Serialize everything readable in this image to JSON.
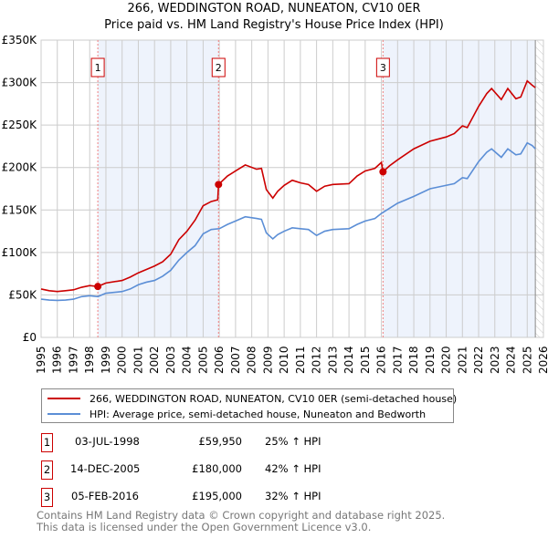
{
  "header": {
    "title": "266, WEDDINGTON ROAD, NUNEATON, CV10 0ER",
    "subtitle": "Price paid vs. HM Land Registry's House Price Index (HPI)"
  },
  "chart_data": {
    "type": "line",
    "title": "266, WEDDINGTON ROAD, NUNEATON, CV10 0ER",
    "subtitle": "Price paid vs. HM Land Registry's House Price Index (HPI)",
    "xlim": [
      1995,
      2026
    ],
    "ylim": [
      0,
      350000
    ],
    "xticks": [
      "1995",
      "1996",
      "1997",
      "1998",
      "1999",
      "2000",
      "2001",
      "2002",
      "2003",
      "2004",
      "2005",
      "2006",
      "2007",
      "2008",
      "2009",
      "2010",
      "2011",
      "2012",
      "2013",
      "2014",
      "2015",
      "2016",
      "2017",
      "2018",
      "2019",
      "2020",
      "2021",
      "2022",
      "2023",
      "2024",
      "2025",
      "2026"
    ],
    "yticks": [
      {
        "v": 0,
        "label": "£0"
      },
      {
        "v": 50000,
        "label": "£50K"
      },
      {
        "v": 100000,
        "label": "£100K"
      },
      {
        "v": 150000,
        "label": "£150K"
      },
      {
        "v": 200000,
        "label": "£200K"
      },
      {
        "v": 250000,
        "label": "£250K"
      },
      {
        "v": 300000,
        "label": "£300K"
      },
      {
        "v": 350000,
        "label": "£350K"
      }
    ],
    "grid": true,
    "colors": {
      "property": "#cc0000",
      "hpi": "#5b8ed6",
      "shade": "#eef3fc",
      "marker": "#cc0000"
    },
    "series": [
      {
        "name": "266, WEDDINGTON ROAD, NUNEATON, CV10 0ER (semi-detached house)",
        "points": [
          [
            1995,
            57000
          ],
          [
            1995.5,
            55000
          ],
          [
            1996,
            54000
          ],
          [
            1996.5,
            55000
          ],
          [
            1997,
            56000
          ],
          [
            1997.5,
            59000
          ],
          [
            1998,
            61000
          ],
          [
            1998.5,
            59950
          ],
          [
            1999,
            64000
          ],
          [
            2000,
            67000
          ],
          [
            2000.5,
            71000
          ],
          [
            2001,
            76000
          ],
          [
            2001.5,
            80000
          ],
          [
            2002,
            84000
          ],
          [
            2002.5,
            89000
          ],
          [
            2003,
            98000
          ],
          [
            2003.5,
            115000
          ],
          [
            2004,
            125000
          ],
          [
            2004.5,
            138000
          ],
          [
            2005,
            155000
          ],
          [
            2005.5,
            160000
          ],
          [
            2005.9,
            162000
          ],
          [
            2005.95,
            180000
          ],
          [
            2006.5,
            190000
          ],
          [
            2007,
            196000
          ],
          [
            2007.6,
            203000
          ],
          [
            2008.3,
            198000
          ],
          [
            2008.6,
            199000
          ],
          [
            2008.9,
            174000
          ],
          [
            2009.3,
            164000
          ],
          [
            2009.6,
            172000
          ],
          [
            2010,
            179000
          ],
          [
            2010.5,
            185000
          ],
          [
            2011,
            182000
          ],
          [
            2011.5,
            180000
          ],
          [
            2012,
            172000
          ],
          [
            2012.5,
            178000
          ],
          [
            2013,
            180000
          ],
          [
            2014,
            181000
          ],
          [
            2014.5,
            190000
          ],
          [
            2015,
            196000
          ],
          [
            2015.6,
            199000
          ],
          [
            2016,
            206000
          ],
          [
            2016.1,
            195000
          ],
          [
            2016.5,
            202000
          ],
          [
            2017,
            209000
          ],
          [
            2018,
            222000
          ],
          [
            2019,
            231000
          ],
          [
            2020,
            236000
          ],
          [
            2020.5,
            240000
          ],
          [
            2021,
            249000
          ],
          [
            2021.3,
            247000
          ],
          [
            2022,
            272000
          ],
          [
            2022.5,
            287000
          ],
          [
            2022.8,
            293000
          ],
          [
            2023.4,
            280000
          ],
          [
            2023.8,
            293000
          ],
          [
            2024.3,
            281000
          ],
          [
            2024.6,
            283000
          ],
          [
            2025,
            302000
          ],
          [
            2025.3,
            297000
          ],
          [
            2025.5,
            294000
          ]
        ]
      },
      {
        "name": "HPI: Average price, semi-detached house, Nuneaton and Bedworth",
        "points": [
          [
            1995,
            45000
          ],
          [
            1995.5,
            44000
          ],
          [
            1996,
            43500
          ],
          [
            1996.5,
            44000
          ],
          [
            1997,
            45000
          ],
          [
            1997.5,
            48000
          ],
          [
            1998,
            49000
          ],
          [
            1998.5,
            48000
          ],
          [
            1999,
            52000
          ],
          [
            2000,
            54000
          ],
          [
            2000.5,
            57000
          ],
          [
            2001,
            62000
          ],
          [
            2001.5,
            65000
          ],
          [
            2002,
            67000
          ],
          [
            2002.5,
            72000
          ],
          [
            2003,
            79000
          ],
          [
            2003.5,
            91000
          ],
          [
            2004,
            100000
          ],
          [
            2004.5,
            108000
          ],
          [
            2005,
            122000
          ],
          [
            2005.5,
            127000
          ],
          [
            2006,
            128000
          ],
          [
            2006.5,
            133000
          ],
          [
            2007,
            137000
          ],
          [
            2007.6,
            142000
          ],
          [
            2008.3,
            140000
          ],
          [
            2008.6,
            139000
          ],
          [
            2008.9,
            123000
          ],
          [
            2009.3,
            116000
          ],
          [
            2009.6,
            121000
          ],
          [
            2010,
            125000
          ],
          [
            2010.5,
            129000
          ],
          [
            2011,
            128000
          ],
          [
            2011.5,
            127000
          ],
          [
            2012,
            120000
          ],
          [
            2012.5,
            125000
          ],
          [
            2013,
            127000
          ],
          [
            2014,
            128000
          ],
          [
            2014.5,
            133000
          ],
          [
            2015,
            137000
          ],
          [
            2015.6,
            140000
          ],
          [
            2016,
            146000
          ],
          [
            2016.5,
            152000
          ],
          [
            2017,
            158000
          ],
          [
            2018,
            166000
          ],
          [
            2019,
            175000
          ],
          [
            2020,
            179000
          ],
          [
            2020.5,
            181000
          ],
          [
            2021,
            188000
          ],
          [
            2021.3,
            187000
          ],
          [
            2022,
            207000
          ],
          [
            2022.5,
            218000
          ],
          [
            2022.8,
            222000
          ],
          [
            2023.4,
            212000
          ],
          [
            2023.8,
            222000
          ],
          [
            2024.3,
            215000
          ],
          [
            2024.6,
            216000
          ],
          [
            2025,
            229000
          ],
          [
            2025.3,
            226000
          ],
          [
            2025.5,
            222000
          ]
        ]
      }
    ],
    "shaded_ranges": [
      [
        1998.5,
        2005.95
      ],
      [
        2016.1,
        2025.5
      ]
    ],
    "hatched_from": 2025.5,
    "sales": [
      {
        "id": "1",
        "x": 1998.5,
        "y": 59950
      },
      {
        "id": "2",
        "x": 2005.95,
        "y": 180000
      },
      {
        "id": "3",
        "x": 2016.1,
        "y": 195000
      }
    ]
  },
  "legend": {
    "items": [
      "266, WEDDINGTON ROAD, NUNEATON, CV10 0ER (semi-detached house)",
      "HPI: Average price, semi-detached house, Nuneaton and Bedworth"
    ]
  },
  "transactions": [
    {
      "id": "1",
      "date": "03-JUL-1998",
      "price": "£59,950",
      "hpi": "25% ↑ HPI"
    },
    {
      "id": "2",
      "date": "14-DEC-2005",
      "price": "£180,000",
      "hpi": "42% ↑ HPI"
    },
    {
      "id": "3",
      "date": "05-FEB-2016",
      "price": "£195,000",
      "hpi": "32% ↑ HPI"
    }
  ],
  "footer": {
    "line1": "Contains HM Land Registry data © Crown copyright and database right 2025.",
    "line2": "This data is licensed under the Open Government Licence v3.0."
  }
}
